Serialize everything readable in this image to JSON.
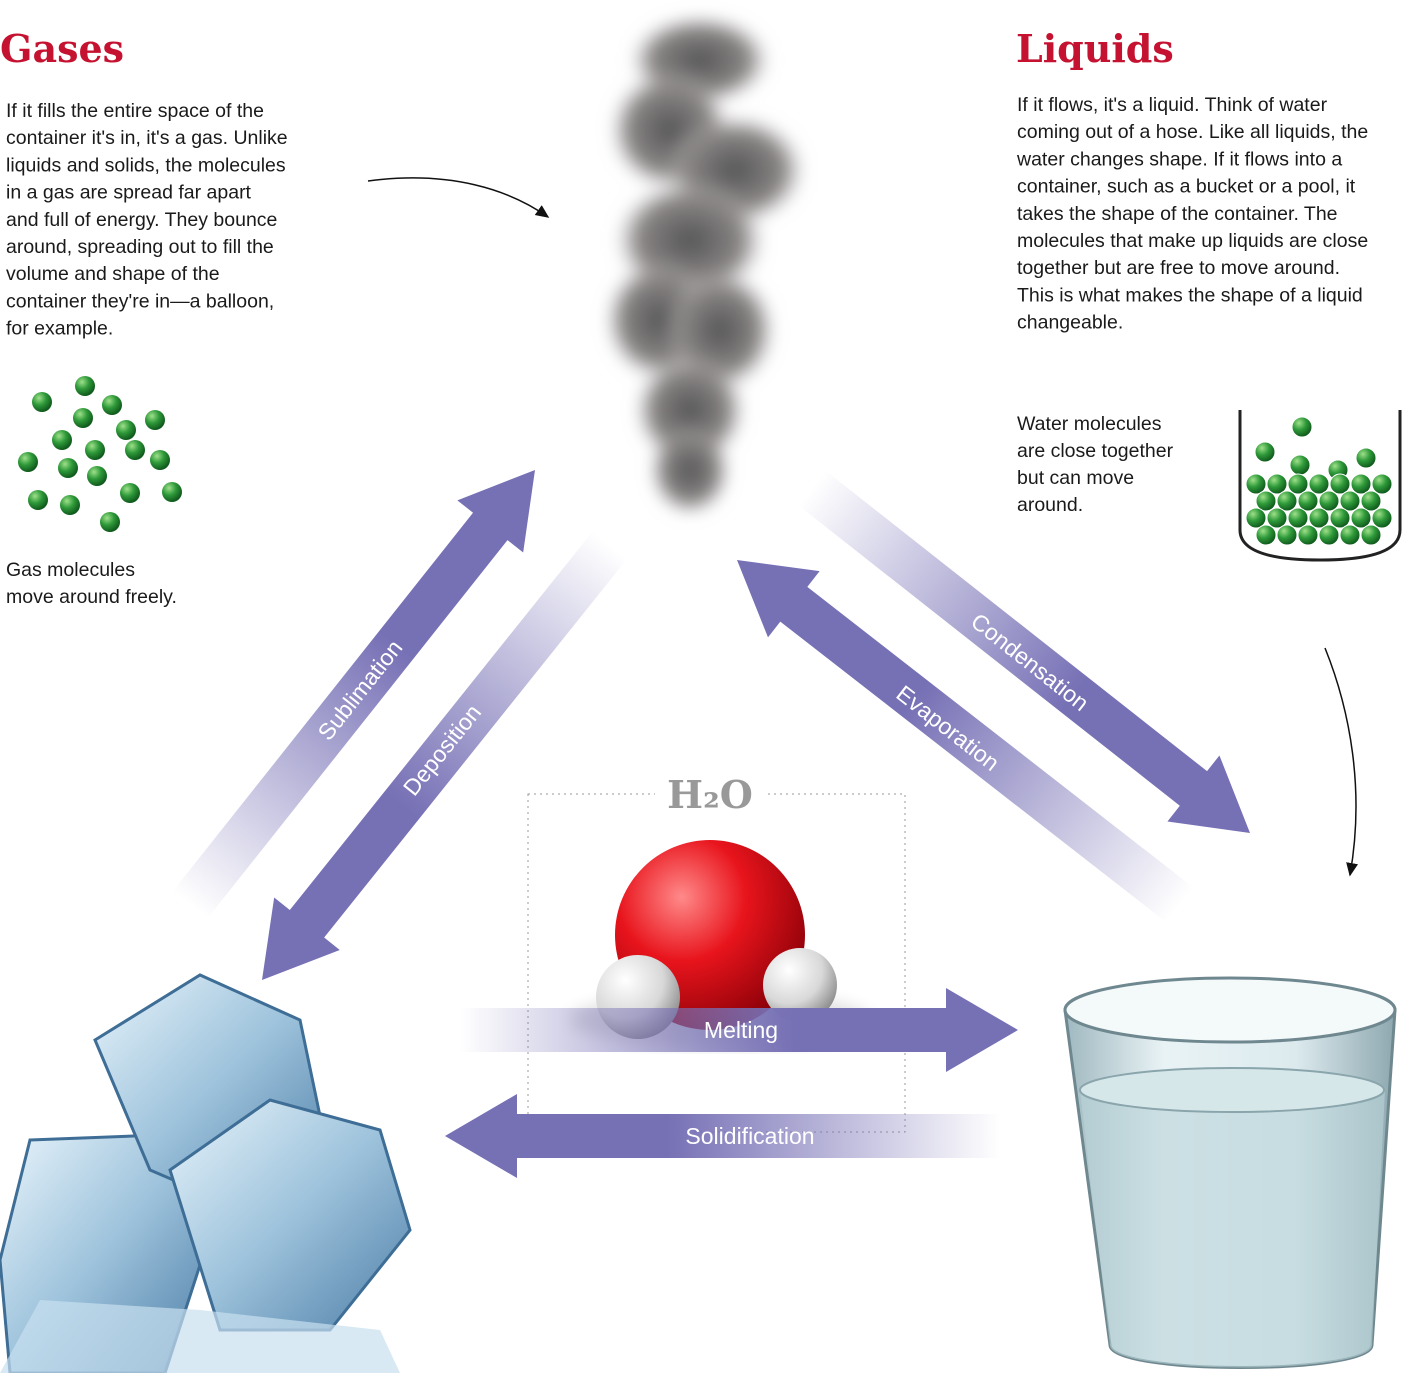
{
  "gases": {
    "title": "Gases",
    "description": [
      "If it fills the entire space of the",
      "container it's in, it's a gas. Unlike",
      "liquids and solids, the molecules",
      "in a gas are spread far apart",
      "and full of energy. They bounce",
      "around, spreading out to fill the",
      "volume and shape of the",
      "container they're in—a balloon,",
      "for example."
    ],
    "caption": [
      "Gas molecules",
      "move around freely."
    ]
  },
  "liquids": {
    "title": "Liquids",
    "description": [
      "If it flows, it's a liquid. Think of water",
      "coming out of a hose. Like all liquids, the",
      "water changes shape. If it flows into a",
      "container, such as a bucket or a pool, it",
      "takes the shape of the container. The",
      "molecules that make up liquids are close",
      "together but are free to move around.",
      "This is what makes the shape of a liquid",
      "changeable."
    ],
    "caption": [
      "Water molecules",
      "are close together",
      "but can move",
      "around."
    ]
  },
  "molecule": {
    "label": "H₂O"
  },
  "transitions": {
    "sublimation": "Sublimation",
    "deposition": "Deposition",
    "condensation": "Condensation",
    "evaporation": "Evaporation",
    "melting": "Melting",
    "solidification": "Solidification"
  }
}
